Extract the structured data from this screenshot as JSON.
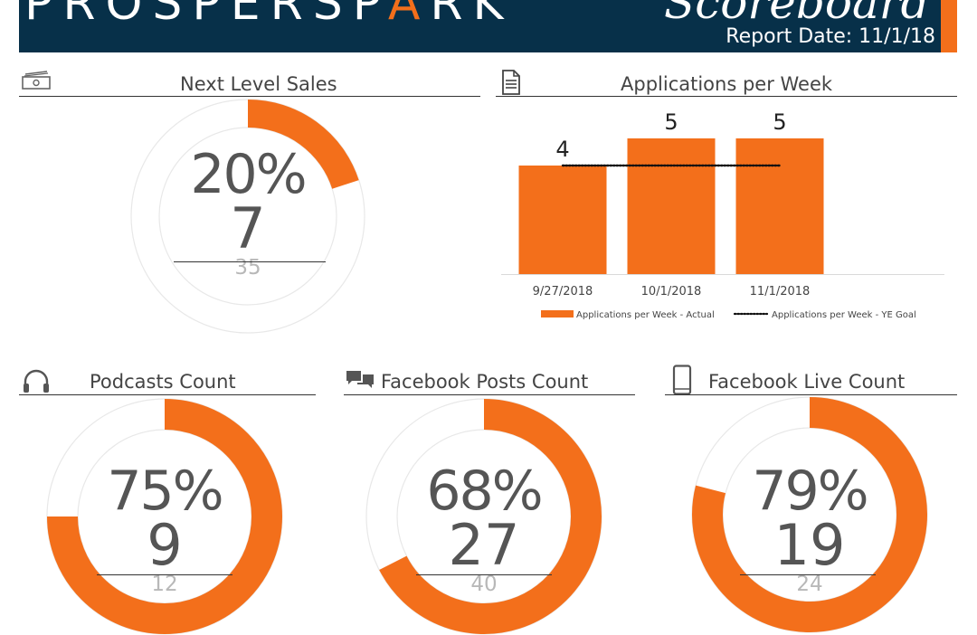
{
  "header": {
    "logo_left": "PROSPERSP",
    "logo_flame": "A",
    "logo_right": "RK",
    "subtitle": "Scoreboard",
    "report_date": "Report Date: 11/1/18"
  },
  "panels": {
    "next_level_sales": {
      "title": "Next Level Sales",
      "icon": "money-icon",
      "percent_label": "20%",
      "value": "7",
      "target": "35",
      "fraction": 0.2
    },
    "applications": {
      "title": "Applications per Week",
      "icon": "document-icon"
    },
    "podcasts": {
      "title": "Podcasts Count",
      "icon": "headphones-icon",
      "percent_label": "75%",
      "value": "9",
      "target": "12",
      "fraction": 0.75
    },
    "facebook_posts": {
      "title": "Facebook Posts Count",
      "icon": "chat-bubbles-icon",
      "percent_label": "68%",
      "value": "27",
      "target": "40",
      "fraction": 0.675
    },
    "facebook_live": {
      "title": "Facebook Live Count",
      "icon": "phone-icon",
      "percent_label": "79%",
      "value": "19",
      "target": "24",
      "fraction": 0.79
    }
  },
  "colors": {
    "accent": "#f36f1b",
    "navy": "#073049",
    "track": "#e6e6e6"
  },
  "chart_data": {
    "type": "bar",
    "title": "Applications per Week",
    "categories": [
      "9/27/2018",
      "10/1/2018",
      "11/1/2018"
    ],
    "series": [
      {
        "name": "Applications per Week - Actual",
        "type": "bar",
        "values": [
          4,
          5,
          5
        ]
      },
      {
        "name": "Applications per Week - YE Goal",
        "type": "line",
        "style": "dotted",
        "values": [
          4,
          4,
          4
        ]
      }
    ],
    "data_labels": [
      "4",
      "5",
      "5"
    ],
    "ylim": [
      0,
      5
    ],
    "grid": false,
    "legend": "bottom"
  }
}
